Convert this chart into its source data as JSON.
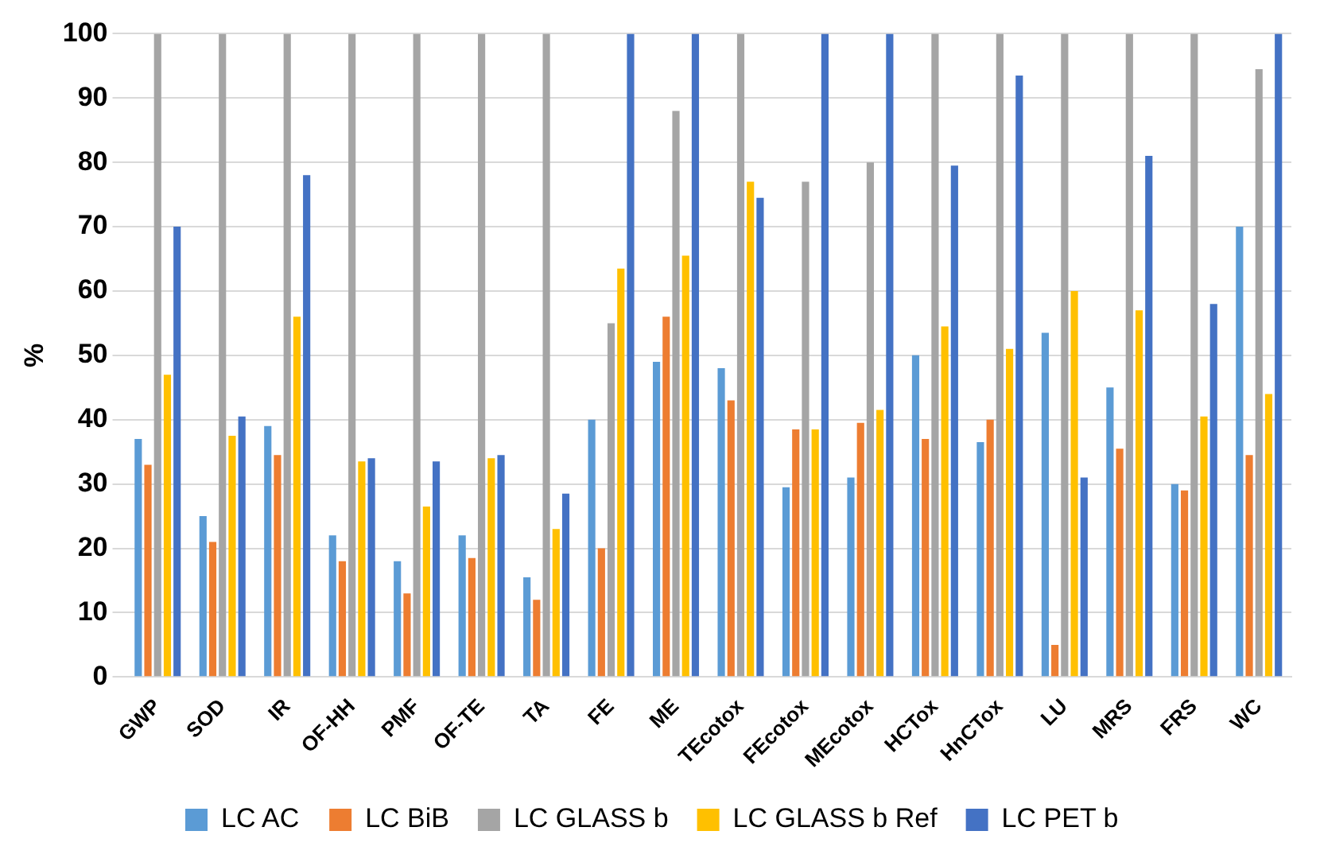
{
  "chart_data": {
    "type": "bar",
    "ylabel": "%",
    "categories": [
      "GWP",
      "SOD",
      "IR",
      "OF-HH",
      "PMF",
      "OF-TE",
      "TA",
      "FE",
      "ME",
      "TEcotox",
      "FEcotox",
      "MEcotox",
      "HCTox",
      "HnCTox",
      "LU",
      "MRS",
      "FRS",
      "WC"
    ],
    "series": [
      {
        "name": "LC AC",
        "color": "#5b9bd5",
        "values": [
          37,
          25,
          39,
          22,
          18,
          22,
          15.5,
          40,
          49,
          48,
          29.5,
          31,
          50,
          36.5,
          53.5,
          45,
          30,
          70
        ]
      },
      {
        "name": "LC BiB",
        "color": "#ed7d31",
        "values": [
          33,
          21,
          34.5,
          18,
          13,
          18.5,
          12,
          20,
          56,
          43,
          38.5,
          39.5,
          37,
          40,
          5,
          35.5,
          29,
          34.5
        ]
      },
      {
        "name": "LC GLASS b",
        "color": "#a5a5a5",
        "values": [
          100,
          100,
          100,
          100,
          100,
          100,
          100,
          55,
          88,
          100,
          77,
          80,
          100,
          100,
          100,
          100,
          100,
          94.5
        ]
      },
      {
        "name": "LC GLASS b Ref",
        "color": "#ffc000",
        "values": [
          47,
          37.5,
          56,
          33.5,
          26.5,
          34,
          23,
          63.5,
          65.5,
          77,
          38.5,
          41.5,
          54.5,
          51,
          60,
          57,
          40.5,
          44
        ]
      },
      {
        "name": "LC PET b",
        "color": "#4472c4",
        "values": [
          70,
          40.5,
          78,
          34,
          33.5,
          34.5,
          28.5,
          100,
          100,
          74.5,
          100,
          100,
          79.5,
          93.5,
          31,
          81,
          58,
          100
        ]
      }
    ],
    "ylim": [
      0,
      100
    ],
    "yticks": [
      0,
      10,
      20,
      30,
      40,
      50,
      60,
      70,
      80,
      90,
      100
    ],
    "grid": "y",
    "legend": "bottom"
  }
}
